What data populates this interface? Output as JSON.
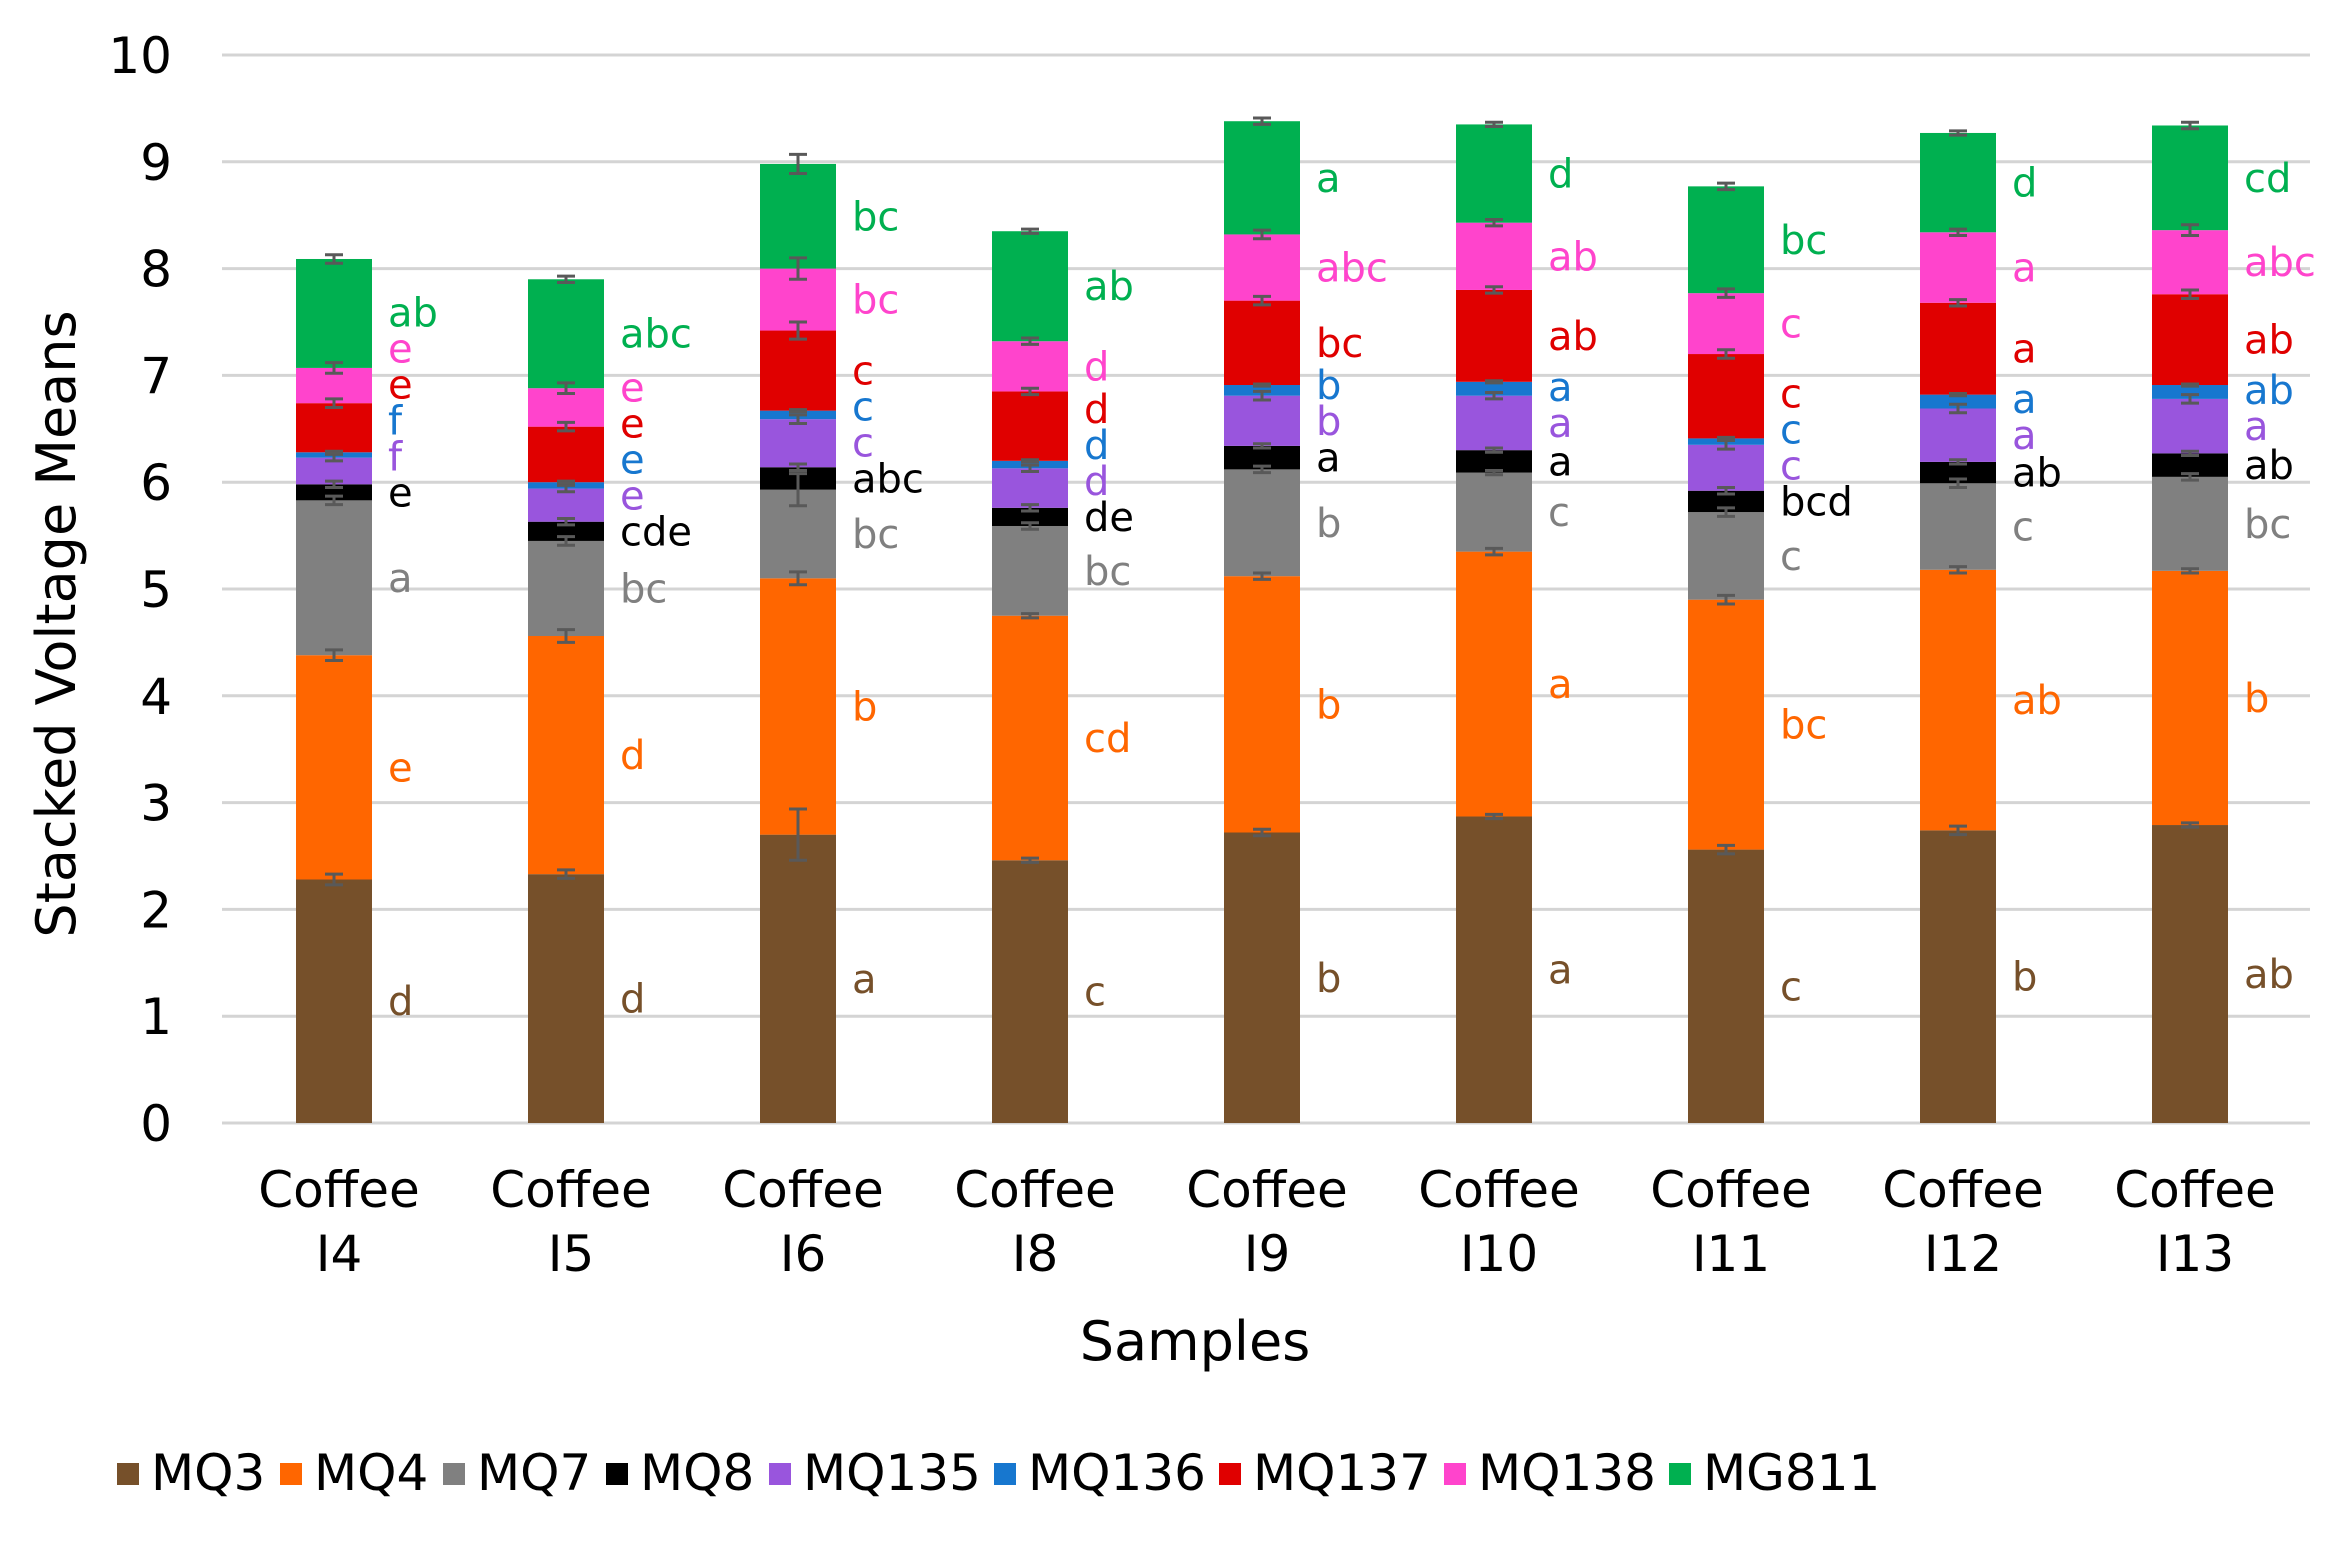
{
  "chart_data": {
    "type": "bar",
    "stacked": true,
    "title": "",
    "xlabel": "Samples",
    "ylabel": "Stacked Voltage Means",
    "ylim": [
      0,
      10
    ],
    "yticks": [
      0,
      1,
      2,
      3,
      4,
      5,
      6,
      7,
      8,
      9,
      10
    ],
    "grid": true,
    "legend_position": "bottom",
    "categories": [
      [
        "Coffee",
        "I4"
      ],
      [
        "Coffee",
        "I5"
      ],
      [
        "Coffee",
        "I6"
      ],
      [
        "Coffee",
        "I8"
      ],
      [
        "Coffee",
        "I9"
      ],
      [
        "Coffee",
        "I10"
      ],
      [
        "Coffee",
        "I11"
      ],
      [
        "Coffee",
        "I12"
      ],
      [
        "Coffee",
        "I13"
      ]
    ],
    "series": [
      {
        "name": "MQ3",
        "color": "#76502A",
        "values": [
          2.28,
          2.33,
          2.7,
          2.46,
          2.72,
          2.87,
          2.56,
          2.74,
          2.79
        ],
        "errors": [
          0.05,
          0.04,
          0.24,
          0.02,
          0.03,
          0.02,
          0.04,
          0.04,
          0.02
        ],
        "letters": [
          "d",
          "d",
          "a",
          "c",
          "b",
          "a",
          "c",
          "b",
          "ab"
        ]
      },
      {
        "name": "MQ4",
        "color": "#FF6600",
        "values": [
          2.1,
          2.23,
          2.4,
          2.29,
          2.4,
          2.48,
          2.34,
          2.44,
          2.38
        ],
        "errors": [
          0.05,
          0.06,
          0.06,
          0.02,
          0.03,
          0.03,
          0.04,
          0.03,
          0.02
        ],
        "letters": [
          "e",
          "d",
          "b",
          "cd",
          "b",
          "a",
          "bc",
          "ab",
          "b"
        ]
      },
      {
        "name": "MQ7",
        "color": "#808080",
        "values": [
          1.45,
          0.89,
          0.83,
          0.84,
          1.0,
          0.74,
          0.82,
          0.81,
          0.88
        ],
        "errors": [
          0.04,
          0.04,
          0.15,
          0.03,
          0.03,
          0.02,
          0.04,
          0.04,
          0.03
        ],
        "letters": [
          "a",
          "bc",
          "bc",
          "bc",
          "b",
          "c",
          "c",
          "c",
          "bc"
        ]
      },
      {
        "name": "MQ8",
        "color": "#000000",
        "values": [
          0.15,
          0.18,
          0.21,
          0.17,
          0.22,
          0.21,
          0.2,
          0.2,
          0.22
        ],
        "errors": [
          0.03,
          0.03,
          0.03,
          0.03,
          0.02,
          0.02,
          0.03,
          0.02,
          0.02
        ],
        "letters": [
          "e",
          "cde",
          "abc",
          "de",
          "a",
          "a",
          "bcd",
          "ab",
          "ab"
        ]
      },
      {
        "name": "MQ135",
        "color": "#9955DD",
        "values": [
          0.25,
          0.31,
          0.45,
          0.37,
          0.47,
          0.51,
          0.43,
          0.5,
          0.51
        ],
        "errors": [
          0.03,
          0.03,
          0.04,
          0.03,
          0.04,
          0.03,
          0.04,
          0.04,
          0.04
        ],
        "letters": [
          "f",
          "e",
          "c",
          "d",
          "b",
          "a",
          "c",
          "a",
          "a"
        ]
      },
      {
        "name": "MQ136",
        "color": "#1777CF",
        "values": [
          0.05,
          0.06,
          0.08,
          0.07,
          0.1,
          0.13,
          0.06,
          0.13,
          0.13
        ],
        "errors": [
          0.01,
          0.01,
          0.01,
          0.01,
          0.01,
          0.01,
          0.01,
          0.01,
          0.01
        ],
        "letters": [
          "f",
          "e",
          "c",
          "d",
          "b",
          "a",
          "c",
          "a",
          "ab"
        ]
      },
      {
        "name": "MQ137",
        "color": "#E00000",
        "values": [
          0.46,
          0.52,
          0.75,
          0.65,
          0.79,
          0.86,
          0.79,
          0.86,
          0.85
        ],
        "errors": [
          0.04,
          0.04,
          0.08,
          0.03,
          0.04,
          0.03,
          0.04,
          0.03,
          0.04
        ],
        "letters": [
          "e",
          "e",
          "c",
          "d",
          "bc",
          "ab",
          "c",
          "a",
          "ab"
        ]
      },
      {
        "name": "MQ138",
        "color": "#FF44CC",
        "values": [
          0.33,
          0.36,
          0.58,
          0.47,
          0.62,
          0.63,
          0.57,
          0.66,
          0.6
        ],
        "errors": [
          0.05,
          0.05,
          0.1,
          0.03,
          0.04,
          0.03,
          0.04,
          0.03,
          0.05
        ],
        "letters": [
          "e",
          "e",
          "bc",
          "d",
          "abc",
          "ab",
          "c",
          "a",
          "abc"
        ]
      },
      {
        "name": "MG811",
        "color": "#00B050",
        "values": [
          1.02,
          1.02,
          0.98,
          1.03,
          1.06,
          0.92,
          1.0,
          0.93,
          0.98
        ],
        "errors": [
          0.04,
          0.03,
          0.09,
          0.02,
          0.03,
          0.02,
          0.03,
          0.02,
          0.03
        ],
        "letters": [
          "ab",
          "abc",
          "bc",
          "ab",
          "a",
          "d",
          "bc",
          "d",
          "cd"
        ]
      }
    ]
  }
}
